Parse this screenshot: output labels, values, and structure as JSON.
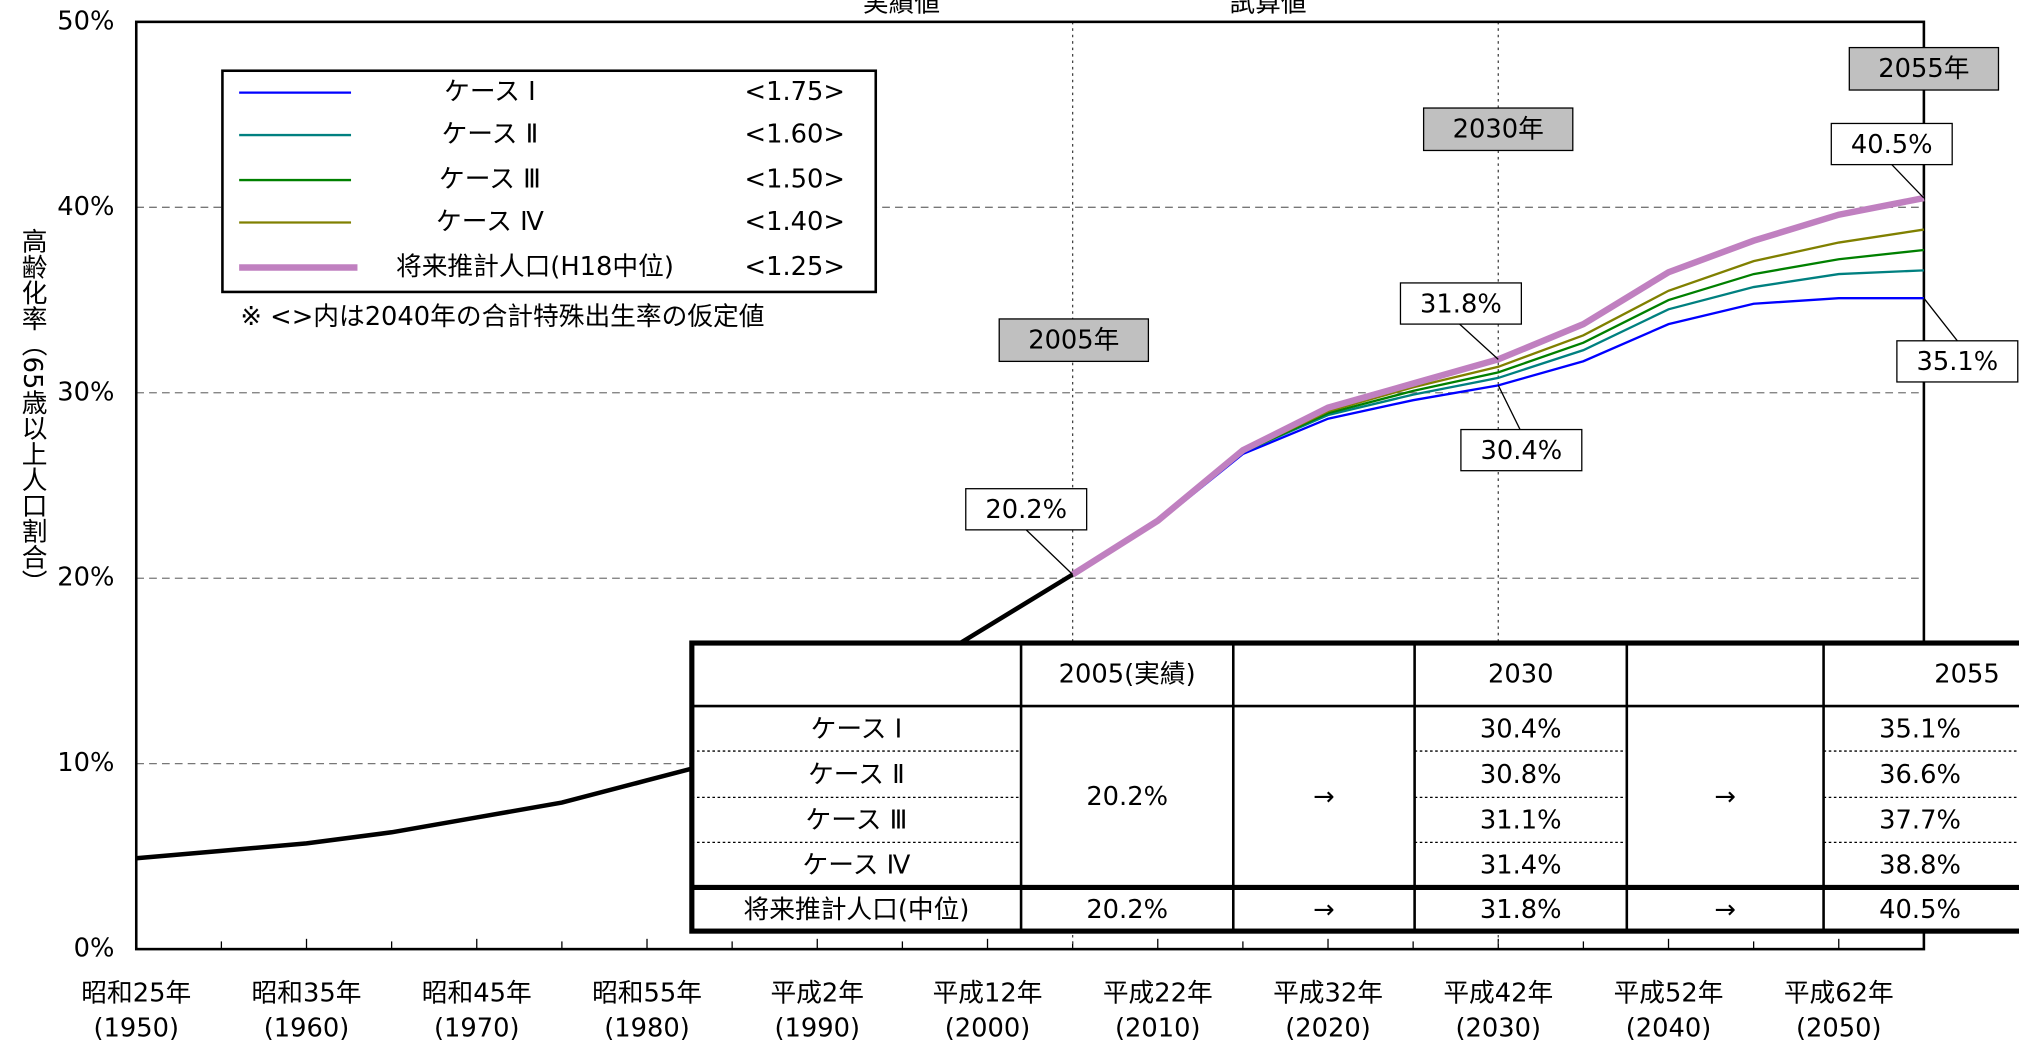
{
  "chart_data": {
    "type": "line",
    "title_left": "実績値",
    "title_right": "試算値",
    "ylabel": "高齢化率（65歳以上人口割合）",
    "ylim": [
      0,
      50
    ],
    "yticks": [
      {
        "value": 0,
        "label": "0%"
      },
      {
        "value": 10,
        "label": "10%"
      },
      {
        "value": 20,
        "label": "20%"
      },
      {
        "value": 30,
        "label": "30%"
      },
      {
        "value": 40,
        "label": "40%"
      },
      {
        "value": 50,
        "label": "50%"
      }
    ],
    "xlim": [
      1950,
      2055
    ],
    "xticks": [
      {
        "value": 1950,
        "label": "(1950)"
      },
      {
        "value": 1960,
        "label": "(1960)"
      },
      {
        "value": 1970,
        "label": "(1970)"
      },
      {
        "value": 1980,
        "label": "(1980)"
      },
      {
        "value": 1990,
        "label": "(1990)"
      },
      {
        "value": 2000,
        "label": "(2000)"
      },
      {
        "value": 2010,
        "label": "(2010)"
      },
      {
        "value": 2020,
        "label": "(2020)"
      },
      {
        "value": 2030,
        "label": "(2030)"
      },
      {
        "value": 2040,
        "label": "(2040)"
      },
      {
        "value": 2050,
        "label": "(2050)"
      }
    ],
    "xtick_era_labels": [
      "昭和25年",
      "昭和35年",
      "昭和45年",
      "昭和55年",
      "平成2年",
      "平成12年",
      "平成22年",
      "平成32年",
      "平成42年",
      "平成52年",
      "平成62年"
    ],
    "grid": true,
    "actual": {
      "color": "#000000",
      "x": [
        1950,
        1955,
        1960,
        1965,
        1970,
        1975,
        1980,
        1985,
        1990,
        1995,
        2000,
        2005
      ],
      "values": [
        4.9,
        5.3,
        5.7,
        6.3,
        7.1,
        7.9,
        9.1,
        10.3,
        12.1,
        14.6,
        17.4,
        20.2
      ]
    },
    "series": [
      {
        "name": "ケース Ⅰ",
        "tfr": "<1.75>",
        "color": "#0000ff",
        "x": [
          2005,
          2010,
          2015,
          2020,
          2025,
          2030,
          2035,
          2040,
          2045,
          2050,
          2055
        ],
        "values": [
          20.2,
          23.0,
          26.7,
          28.6,
          29.6,
          30.4,
          31.7,
          33.7,
          34.8,
          35.1,
          35.1
        ]
      },
      {
        "name": "ケース Ⅱ",
        "tfr": "<1.60>",
        "color": "#008080",
        "x": [
          2005,
          2010,
          2015,
          2020,
          2025,
          2030,
          2035,
          2040,
          2045,
          2050,
          2055
        ],
        "values": [
          20.2,
          23.0,
          26.8,
          28.8,
          29.9,
          30.8,
          32.3,
          34.5,
          35.7,
          36.4,
          36.6
        ]
      },
      {
        "name": "ケース Ⅲ",
        "tfr": "<1.50>",
        "color": "#008000",
        "x": [
          2005,
          2010,
          2015,
          2020,
          2025,
          2030,
          2035,
          2040,
          2045,
          2050,
          2055
        ],
        "values": [
          20.2,
          23.0,
          26.8,
          28.9,
          30.1,
          31.1,
          32.7,
          35.0,
          36.4,
          37.2,
          37.7
        ]
      },
      {
        "name": "ケース Ⅳ",
        "tfr": "<1.40>",
        "color": "#808000",
        "x": [
          2005,
          2010,
          2015,
          2020,
          2025,
          2030,
          2035,
          2040,
          2045,
          2050,
          2055
        ],
        "values": [
          20.2,
          23.0,
          26.8,
          29.0,
          30.3,
          31.4,
          33.1,
          35.5,
          37.1,
          38.1,
          38.8
        ]
      },
      {
        "name": "将来推計人口(H18中位)",
        "tfr": "<1.25>",
        "color": "#c080c0",
        "x": [
          2005,
          2010,
          2015,
          2020,
          2025,
          2030,
          2035,
          2040,
          2045,
          2050,
          2055
        ],
        "values": [
          20.2,
          23.1,
          26.9,
          29.2,
          30.5,
          31.8,
          33.7,
          36.5,
          38.2,
          39.6,
          40.5
        ]
      }
    ],
    "legend_note": "※ <>内は2040年の合計特殊出生率の仮定値",
    "year_markers": [
      "2005年",
      "2030年",
      "2055年"
    ],
    "callouts": [
      "20.2%",
      "31.8%",
      "30.4%",
      "40.5%",
      "35.1%"
    ]
  },
  "table": {
    "header": [
      "",
      "2005(実績)",
      "",
      "2030",
      "",
      "2055"
    ],
    "case_rows": [
      {
        "name": "ケース Ⅰ",
        "v2030": "30.4%",
        "v2055": "35.1%"
      },
      {
        "name": "ケース Ⅱ",
        "v2030": "30.8%",
        "v2055": "36.6%"
      },
      {
        "name": "ケース Ⅲ",
        "v2030": "31.1%",
        "v2055": "37.7%"
      },
      {
        "name": "ケース Ⅳ",
        "v2030": "31.4%",
        "v2055": "38.8%"
      }
    ],
    "merged_2005": "20.2%",
    "arrow": "→",
    "total_row": [
      "将来推計人口(中位)",
      "20.2%",
      "→",
      "31.8%",
      "→",
      "40.5%"
    ]
  }
}
